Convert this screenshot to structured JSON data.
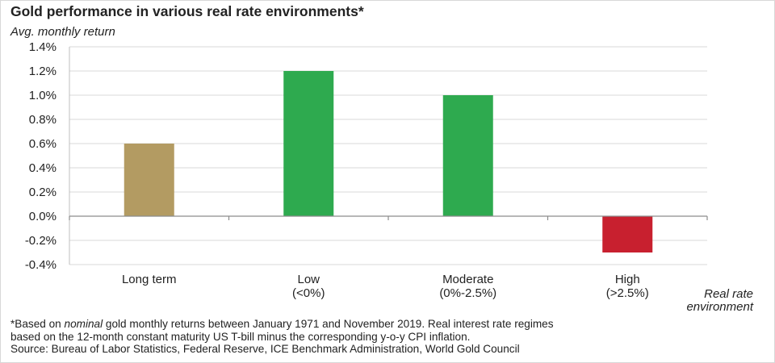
{
  "title": "Gold performance in various real rate environments*",
  "y_axis_label": "Avg. monthly return",
  "x_axis_label_lines": [
    "Real rate",
    "environment"
  ],
  "chart_data": {
    "type": "bar",
    "title": "Gold performance in various real rate environments*",
    "ylabel": "Avg. monthly return",
    "xlabel": "Real rate environment",
    "categories": [
      [
        "Long term"
      ],
      [
        "Low",
        "(<0%)"
      ],
      [
        "Moderate",
        "(0%-2.5%)"
      ],
      [
        "High",
        "(>2.5%)"
      ]
    ],
    "values": [
      0.6,
      1.2,
      1.0,
      -0.3
    ],
    "unit": "%",
    "ylim": [
      -0.4,
      1.4
    ],
    "yticks": [
      1.4,
      1.2,
      1.0,
      0.8,
      0.6,
      0.4,
      0.2,
      0.0,
      -0.2,
      -0.4
    ],
    "ytick_labels": [
      "1.4%",
      "1.2%",
      "1.0%",
      "0.8%",
      "0.6%",
      "0.4%",
      "0.2%",
      "0.0%",
      "-0.2%",
      "-0.4%"
    ],
    "grid": true,
    "legend": "none",
    "bar_colors": [
      "#b39b62",
      "#2eaa4f",
      "#2eaa4f",
      "#c8202f"
    ]
  },
  "footnote": {
    "line1_pre": "*Based on ",
    "line1_em": "nominal",
    "line1_post": " gold monthly returns between January 1971 and November 2019. Real interest rate regimes",
    "line2": "based on the 12-month constant maturity US T-bill minus the corresponding y-o-y CPI inflation.",
    "line3": "Source: Bureau of Labor Statistics, Federal Reserve, ICE Benchmark Administration, World Gold Council"
  }
}
